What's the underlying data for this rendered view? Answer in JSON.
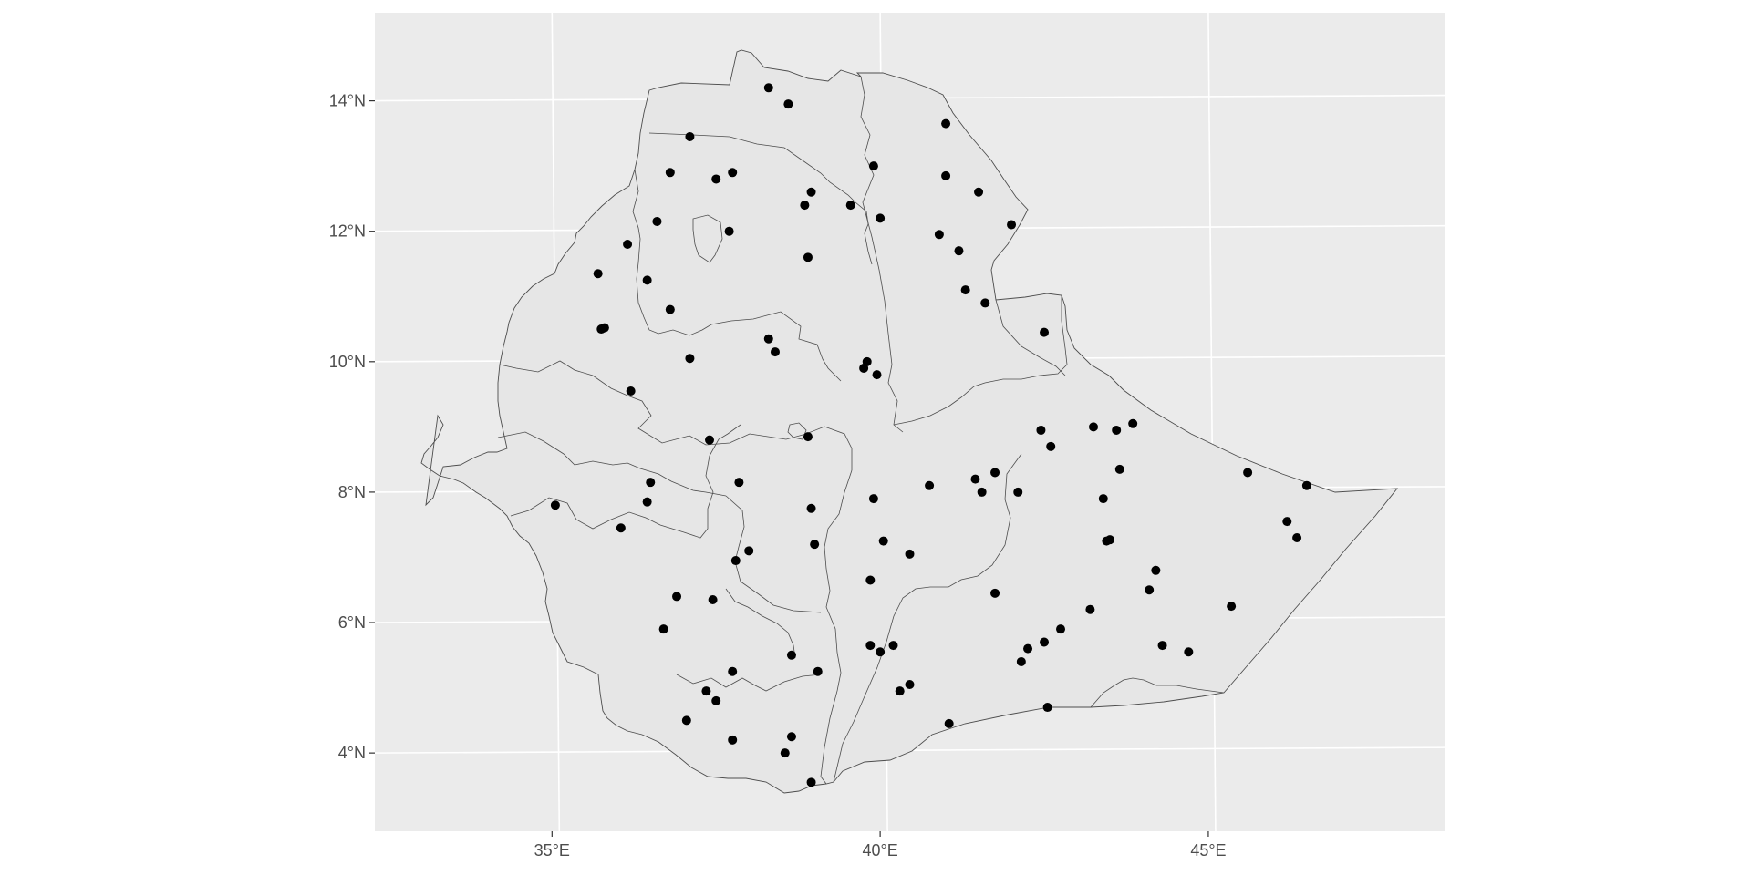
{
  "chart_data": {
    "type": "scatter",
    "title": "",
    "xlabel": "",
    "ylabel": "",
    "xlim": [
      32.3,
      48.6
    ],
    "ylim": [
      2.8,
      15.35
    ],
    "grid": true,
    "legend": "none",
    "x_ticks": [
      {
        "value": 35,
        "label": "35°E"
      },
      {
        "value": 40,
        "label": "40°E"
      },
      {
        "value": 45,
        "label": "45°E"
      }
    ],
    "y_ticks": [
      {
        "value": 4,
        "label": "4°N"
      },
      {
        "value": 6,
        "label": "6°N"
      },
      {
        "value": 8,
        "label": "8°N"
      },
      {
        "value": 10,
        "label": "10°N"
      },
      {
        "value": 12,
        "label": "12°N"
      },
      {
        "value": 14,
        "label": "14°N"
      }
    ],
    "colors": {
      "panel": "#ebebeb",
      "grid": "#ffffff",
      "land": "#e6e6e6",
      "border": "#4d4d4d",
      "point": "#000000"
    },
    "points": [
      {
        "x": 38.3,
        "y": 14.2
      },
      {
        "x": 38.6,
        "y": 13.95
      },
      {
        "x": 37.1,
        "y": 13.45
      },
      {
        "x": 41.0,
        "y": 13.65
      },
      {
        "x": 36.8,
        "y": 12.9
      },
      {
        "x": 37.5,
        "y": 12.8
      },
      {
        "x": 37.75,
        "y": 12.9
      },
      {
        "x": 39.9,
        "y": 13.0
      },
      {
        "x": 41.0,
        "y": 12.85
      },
      {
        "x": 41.5,
        "y": 12.6
      },
      {
        "x": 38.95,
        "y": 12.6
      },
      {
        "x": 38.85,
        "y": 12.4
      },
      {
        "x": 39.55,
        "y": 12.4
      },
      {
        "x": 36.6,
        "y": 12.15
      },
      {
        "x": 37.7,
        "y": 12.0
      },
      {
        "x": 40.0,
        "y": 12.2
      },
      {
        "x": 42.0,
        "y": 12.1
      },
      {
        "x": 40.9,
        "y": 11.95
      },
      {
        "x": 41.2,
        "y": 11.7
      },
      {
        "x": 36.15,
        "y": 11.8
      },
      {
        "x": 38.9,
        "y": 11.6
      },
      {
        "x": 35.7,
        "y": 11.35
      },
      {
        "x": 36.45,
        "y": 11.25
      },
      {
        "x": 41.3,
        "y": 11.1
      },
      {
        "x": 41.6,
        "y": 10.9
      },
      {
        "x": 36.8,
        "y": 10.8
      },
      {
        "x": 35.75,
        "y": 10.5
      },
      {
        "x": 35.8,
        "y": 10.52
      },
      {
        "x": 42.5,
        "y": 10.45
      },
      {
        "x": 38.3,
        "y": 10.35
      },
      {
        "x": 38.4,
        "y": 10.15
      },
      {
        "x": 37.1,
        "y": 10.05
      },
      {
        "x": 39.8,
        "y": 10.0
      },
      {
        "x": 39.75,
        "y": 9.9
      },
      {
        "x": 39.95,
        "y": 9.8
      },
      {
        "x": 36.2,
        "y": 9.55
      },
      {
        "x": 37.4,
        "y": 8.8
      },
      {
        "x": 38.9,
        "y": 8.85
      },
      {
        "x": 43.25,
        "y": 9.0
      },
      {
        "x": 43.6,
        "y": 8.95
      },
      {
        "x": 43.85,
        "y": 9.05
      },
      {
        "x": 42.45,
        "y": 8.95
      },
      {
        "x": 42.6,
        "y": 8.7
      },
      {
        "x": 43.65,
        "y": 8.35
      },
      {
        "x": 45.6,
        "y": 8.3
      },
      {
        "x": 46.5,
        "y": 8.1
      },
      {
        "x": 36.5,
        "y": 8.15
      },
      {
        "x": 37.85,
        "y": 8.15
      },
      {
        "x": 40.75,
        "y": 8.1
      },
      {
        "x": 41.45,
        "y": 8.2
      },
      {
        "x": 41.75,
        "y": 8.3
      },
      {
        "x": 41.55,
        "y": 8.0
      },
      {
        "x": 42.1,
        "y": 8.0
      },
      {
        "x": 35.05,
        "y": 7.8
      },
      {
        "x": 36.45,
        "y": 7.85
      },
      {
        "x": 39.9,
        "y": 7.9
      },
      {
        "x": 43.4,
        "y": 7.9
      },
      {
        "x": 38.95,
        "y": 7.75
      },
      {
        "x": 46.2,
        "y": 7.55
      },
      {
        "x": 46.35,
        "y": 7.3
      },
      {
        "x": 36.05,
        "y": 7.45
      },
      {
        "x": 40.05,
        "y": 7.25
      },
      {
        "x": 43.45,
        "y": 7.25
      },
      {
        "x": 43.5,
        "y": 7.27
      },
      {
        "x": 39.0,
        "y": 7.2
      },
      {
        "x": 38.0,
        "y": 7.1
      },
      {
        "x": 37.8,
        "y": 6.95
      },
      {
        "x": 40.45,
        "y": 7.05
      },
      {
        "x": 44.2,
        "y": 6.8
      },
      {
        "x": 39.85,
        "y": 6.65
      },
      {
        "x": 44.1,
        "y": 6.5
      },
      {
        "x": 41.75,
        "y": 6.45
      },
      {
        "x": 36.9,
        "y": 6.4
      },
      {
        "x": 37.45,
        "y": 6.35
      },
      {
        "x": 45.35,
        "y": 6.25
      },
      {
        "x": 43.2,
        "y": 6.2
      },
      {
        "x": 36.7,
        "y": 5.9
      },
      {
        "x": 42.75,
        "y": 5.9
      },
      {
        "x": 42.5,
        "y": 5.7
      },
      {
        "x": 39.85,
        "y": 5.65
      },
      {
        "x": 40.2,
        "y": 5.65
      },
      {
        "x": 40.0,
        "y": 5.55
      },
      {
        "x": 42.25,
        "y": 5.6
      },
      {
        "x": 44.3,
        "y": 5.65
      },
      {
        "x": 44.7,
        "y": 5.55
      },
      {
        "x": 38.65,
        "y": 5.5
      },
      {
        "x": 42.15,
        "y": 5.4
      },
      {
        "x": 37.75,
        "y": 5.25
      },
      {
        "x": 39.05,
        "y": 5.25
      },
      {
        "x": 40.45,
        "y": 5.05
      },
      {
        "x": 40.3,
        "y": 4.95
      },
      {
        "x": 37.35,
        "y": 4.95
      },
      {
        "x": 37.5,
        "y": 4.8
      },
      {
        "x": 42.55,
        "y": 4.7
      },
      {
        "x": 37.05,
        "y": 4.5
      },
      {
        "x": 41.05,
        "y": 4.45
      },
      {
        "x": 37.75,
        "y": 4.2
      },
      {
        "x": 38.65,
        "y": 4.25
      },
      {
        "x": 38.55,
        "y": 4.0
      },
      {
        "x": 38.95,
        "y": 3.55
      }
    ]
  }
}
